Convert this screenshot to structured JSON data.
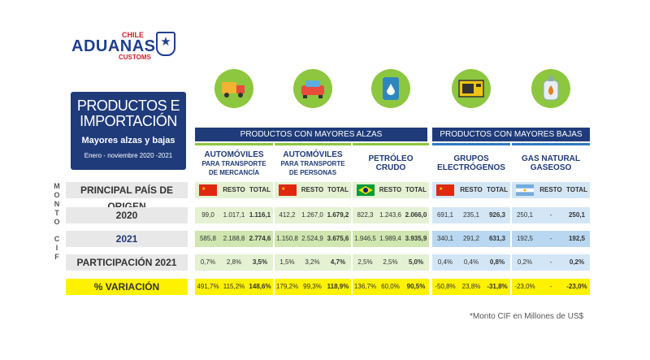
{
  "logo": {
    "chile": "CHILE",
    "aduanas": "ADUANAS",
    "customs": "CUSTOMS"
  },
  "title": {
    "line1": "PRODUCTOS E",
    "line2": "IMPORTACIÓN",
    "subtitle": "Mayores alzas y bajas",
    "range": "Enero - noviembre 2020 -2021"
  },
  "headers": {
    "alzas": "PRODUCTOS CON MAYORES ALZAS",
    "bajas": "PRODUCTOS CON MAYORES BAJAS"
  },
  "vertical_label": [
    "M",
    "O",
    "N",
    "T",
    "O",
    "C",
    "I",
    "F"
  ],
  "row_labels": {
    "pais": "PRINCIPAL PAÍS DE ORIGEN",
    "y2020": "2020",
    "y2021": "2021",
    "participacion": "PARTICIPACIÓN 2021",
    "variacion": "% VARIACIÓN"
  },
  "subcols": {
    "resto": "RESTO",
    "total": "TOTAL"
  },
  "products": [
    {
      "name1": "AUTOMÓVILES",
      "name2": "PARA TRANSPORTE",
      "name3": "DE MERCANCÍA",
      "icon": "truck-icon",
      "flag": "china",
      "r2020": [
        "99,0",
        "1.017,1",
        "1.116,1"
      ],
      "r2021": [
        "585,8",
        "2.188,8",
        "2.774,6"
      ],
      "part": [
        "0,7%",
        "2,8%",
        "3,5%"
      ],
      "var": [
        "491,7%",
        "115,2%",
        "148,6%"
      ]
    },
    {
      "name1": "AUTOMÓVILES",
      "name2": "PARA TRANSPORTE",
      "name3": "DE PERSONAS",
      "icon": "car-icon",
      "flag": "china",
      "r2020": [
        "412,2",
        "1.267,0",
        "1.679,2"
      ],
      "r2021": [
        "1.150,8",
        "2.524,9",
        "3.675,6"
      ],
      "part": [
        "1,5%",
        "3,2%",
        "4,7%"
      ],
      "var": [
        "179,2%",
        "99,3%",
        "118,9%"
      ]
    },
    {
      "name1": "PETRÓLEO",
      "name2": "CRUDO",
      "name3": "",
      "icon": "oil-barrel-icon",
      "flag": "brazil",
      "r2020": [
        "822,3",
        "1.243,6",
        "2.066,0"
      ],
      "r2021": [
        "1.946,5",
        "1.989,4",
        "3.935,9"
      ],
      "part": [
        "2,5%",
        "2,5%",
        "5,0%"
      ],
      "var": [
        "136,7%",
        "60,0%",
        "90,5%"
      ]
    },
    {
      "name1": "GRUPOS",
      "name2": "ELECTRÓGENOS",
      "name3": "",
      "icon": "generator-icon",
      "flag": "china",
      "r2020": [
        "691,1",
        "235,1",
        "926,3"
      ],
      "r2021": [
        "340,1",
        "291,2",
        "631,3"
      ],
      "part": [
        "0,4%",
        "0,4%",
        "0,8%"
      ],
      "var": [
        "-50,8%",
        "23,8%",
        "-31,8%"
      ]
    },
    {
      "name1": "GAS NATURAL",
      "name2": "GASEOSO",
      "name3": "",
      "icon": "gas-tank-icon",
      "flag": "argentina",
      "r2020": [
        "250,1",
        "-",
        "250,1"
      ],
      "r2021": [
        "192,5",
        "-",
        "192,5"
      ],
      "part": [
        "0,2%",
        "-",
        "0,2%"
      ],
      "var": [
        "-23,0%",
        "-",
        "-23,0%"
      ]
    }
  ],
  "note": "*Monto CIF en Millones de US$",
  "colors": {
    "navy": "#1f3b7a",
    "green": "#8dc63f",
    "blue": "#2e7bc4",
    "yellow": "#fff200"
  }
}
